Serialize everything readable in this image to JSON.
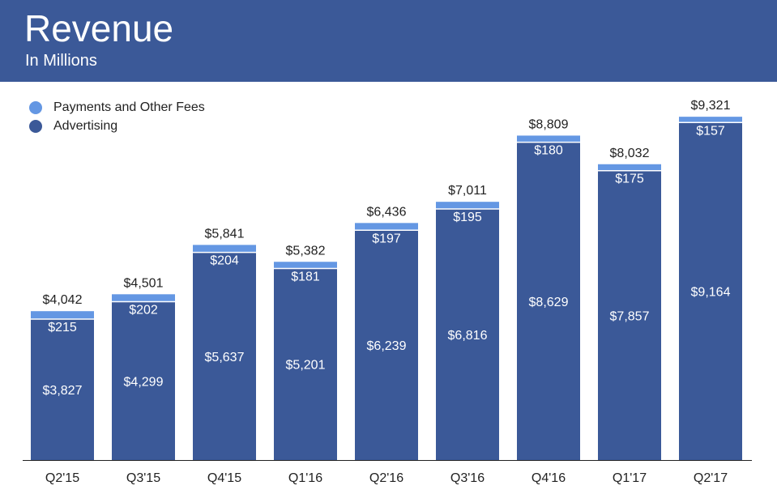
{
  "header": {
    "title": "Revenue",
    "subtitle": "In Millions"
  },
  "colors": {
    "header_bg": "#3b5998",
    "advertising": "#3b5998",
    "payments": "#6497e3",
    "bar_label": "#ffffff",
    "text": "#222222"
  },
  "chart_data": {
    "type": "bar",
    "stacked": true,
    "title": "Revenue",
    "subtitle": "In Millions",
    "categories": [
      "Q2'15",
      "Q3'15",
      "Q4'15",
      "Q1'16",
      "Q2'16",
      "Q3'16",
      "Q4'16",
      "Q1'17",
      "Q2'17"
    ],
    "series": [
      {
        "name": "Advertising",
        "values": [
          3827,
          4299,
          5637,
          5201,
          6239,
          6816,
          8629,
          7857,
          9164
        ],
        "labels": [
          "$3,827",
          "$4,299",
          "$5,637",
          "$5,201",
          "$6,239",
          "$6,816",
          "$8,629",
          "$7,857",
          "$9,164"
        ]
      },
      {
        "name": "Payments and Other Fees",
        "values": [
          215,
          202,
          204,
          181,
          197,
          195,
          180,
          175,
          157
        ],
        "labels": [
          "$215",
          "$202",
          "$204",
          "$181",
          "$197",
          "$195",
          "$180",
          "$175",
          "$157"
        ]
      }
    ],
    "totals": [
      4042,
      4501,
      5841,
      5382,
      6436,
      7011,
      8809,
      8032,
      9321
    ],
    "total_labels": [
      "$4,042",
      "$4,501",
      "$5,841",
      "$5,382",
      "$6,436",
      "$7,011",
      "$8,809",
      "$8,032",
      "$9,321"
    ],
    "legend": [
      "Payments and Other Fees",
      "Advertising"
    ],
    "legend_position": "top-left",
    "ylim": [
      0,
      9500
    ],
    "grid": false,
    "xlabel": "",
    "ylabel": ""
  }
}
